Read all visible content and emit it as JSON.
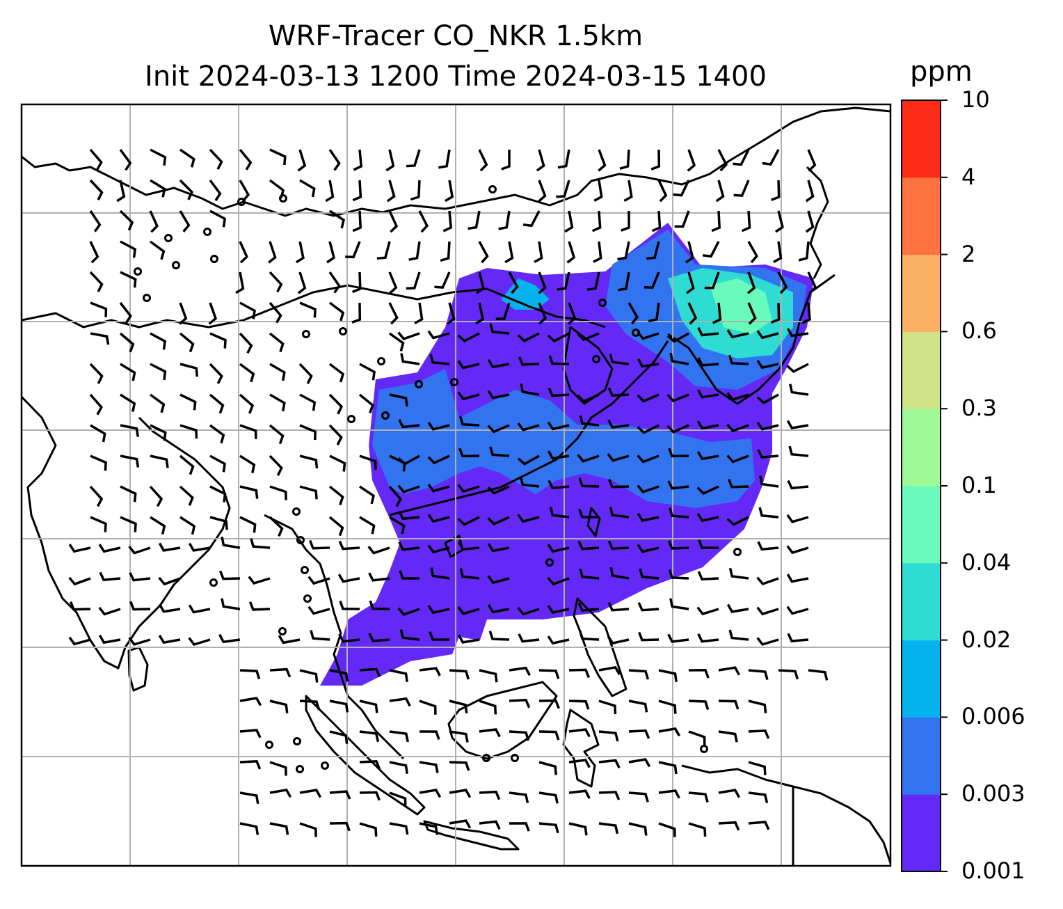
{
  "title": {
    "line1": "WRF-Tracer CO_NKR 1.5km",
    "line2": "Init 2024-03-13 1200 Time 2024-03-15 1400"
  },
  "colorbar": {
    "unit": "ppm",
    "levels": [
      "0.001",
      "0.003",
      "0.006",
      "0.02",
      "0.04",
      "0.1",
      "0.3",
      "0.6",
      "2",
      "4",
      "10"
    ],
    "colors": [
      "#6429f7",
      "#3274f0",
      "#05b2ee",
      "#2fdcd4",
      "#68fbbc",
      "#9dfa96",
      "#cfe287",
      "#fcb063",
      "#fe723f",
      "#fb2b18"
    ]
  },
  "colors": {
    "coastline": "#000000",
    "grid": "#b0b0b0",
    "plume_low": "#6429f7",
    "plume_mid": "#3274f0",
    "plume_high": "#2fdcd4"
  }
}
